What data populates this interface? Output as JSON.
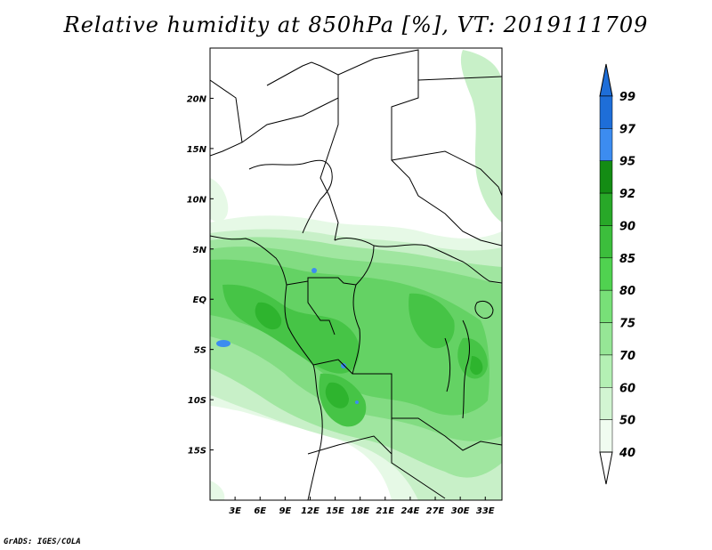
{
  "title": "Relative humidity at 850hPa [%], VT: 2019111709",
  "credit": "GrADS: IGES/COLA",
  "map": {
    "lon_range": [
      0,
      35
    ],
    "lat_range": [
      -20,
      25
    ],
    "lon_ticks": [
      "3E",
      "6E",
      "9E",
      "12E",
      "15E",
      "18E",
      "21E",
      "24E",
      "27E",
      "30E",
      "33E"
    ],
    "lat_ticks": [
      "20N",
      "15N",
      "10N",
      "5N",
      "EQ",
      "5S",
      "10S",
      "15S"
    ]
  },
  "colorbar": {
    "levels": [
      "99",
      "97",
      "95",
      "92",
      "90",
      "85",
      "80",
      "75",
      "70",
      "60",
      "50",
      "40"
    ],
    "colors": [
      "#1e6ed8",
      "#3c8cf0",
      "#148c14",
      "#28a828",
      "#3cbe3c",
      "#50d250",
      "#78e078",
      "#96e696",
      "#b4f0b4",
      "#d2f5d2",
      "#f0fcf0"
    ]
  },
  "fields": {
    "land_color": "#ffffff",
    "humid_colors": {
      "c50": "#e6f9e6",
      "c60": "#c8f0c8",
      "c70": "#a0e6a0",
      "c75": "#82dc82",
      "c80": "#64d264",
      "c85": "#46c446",
      "c90": "#2eb42e",
      "c97": "#3c8cf0"
    }
  }
}
